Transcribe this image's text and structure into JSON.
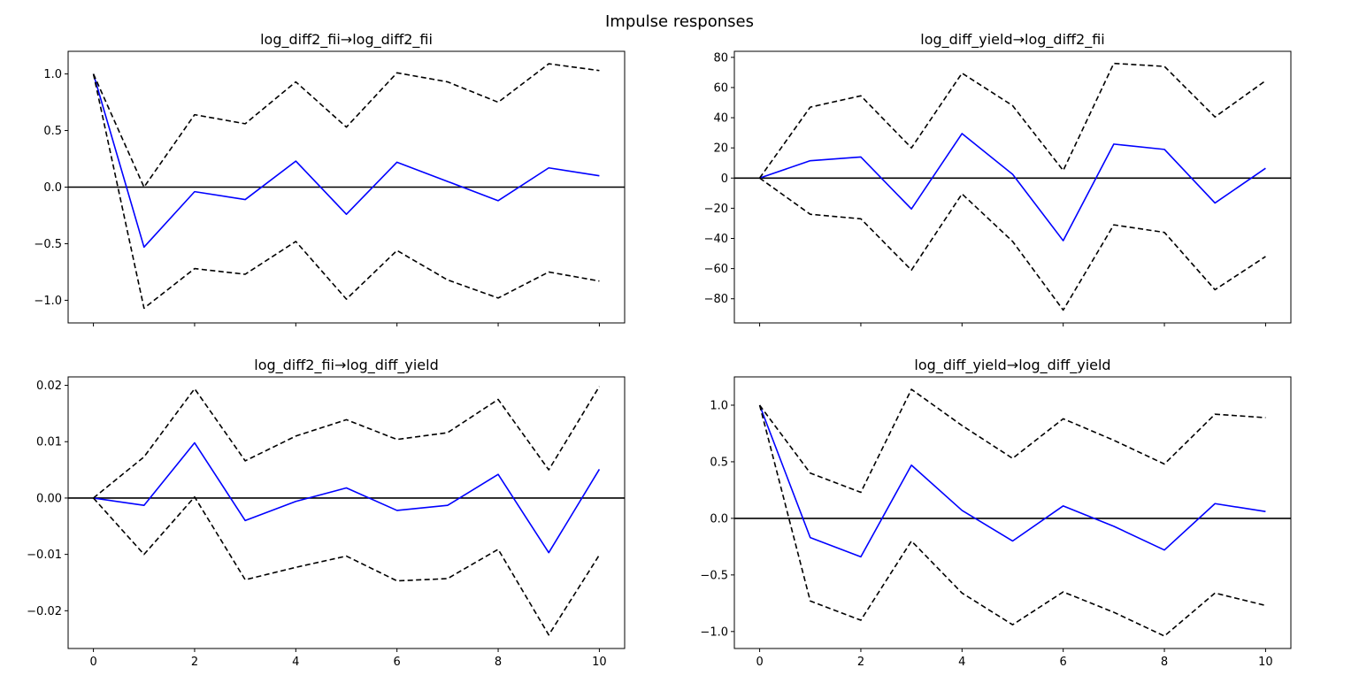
{
  "figure_title": "Impulse responses",
  "chart_data": [
    {
      "type": "line",
      "title": "log_diff2_fii→log_diff2_fii",
      "x": [
        0,
        1,
        2,
        3,
        4,
        5,
        6,
        7,
        8,
        9,
        10
      ],
      "ylim": [
        -1.2,
        1.2
      ],
      "yticks": [
        -1.0,
        -0.5,
        0.0,
        0.5,
        1.0
      ],
      "ytick_labels": [
        "−1.0",
        "−0.5",
        "0.0",
        "0.5",
        "1.0"
      ],
      "xticks": [
        0,
        2,
        4,
        6,
        8,
        10
      ],
      "xtick_labels": [],
      "series": [
        {
          "role": "response",
          "color": "#0000ff",
          "style": "solid",
          "values": [
            1.0,
            -0.53,
            -0.04,
            -0.11,
            0.23,
            -0.24,
            0.22,
            0.05,
            -0.12,
            0.17,
            0.1
          ]
        },
        {
          "role": "upper",
          "color": "#000000",
          "style": "dashed",
          "values": [
            1.0,
            0.0,
            0.64,
            0.56,
            0.93,
            0.53,
            1.01,
            0.93,
            0.75,
            1.09,
            1.03
          ]
        },
        {
          "role": "lower",
          "color": "#000000",
          "style": "dashed",
          "values": [
            1.0,
            -1.07,
            -0.72,
            -0.77,
            -0.48,
            -0.99,
            -0.56,
            -0.82,
            -0.98,
            -0.75,
            -0.83
          ]
        }
      ]
    },
    {
      "type": "line",
      "title": "log_diff_yield→log_diff2_fii",
      "x": [
        0,
        1,
        2,
        3,
        4,
        5,
        6,
        7,
        8,
        9,
        10
      ],
      "ylim": [
        -96,
        84
      ],
      "yticks": [
        -80,
        -60,
        -40,
        -20,
        0,
        20,
        40,
        60,
        80
      ],
      "ytick_labels": [
        "−80",
        "−60",
        "−40",
        "−20",
        "0",
        "20",
        "40",
        "60",
        "80"
      ],
      "xticks": [
        0,
        2,
        4,
        6,
        8,
        10
      ],
      "xtick_labels": [],
      "series": [
        {
          "role": "response",
          "color": "#0000ff",
          "style": "solid",
          "values": [
            0,
            11.5,
            14,
            -20.5,
            29.5,
            2.5,
            -41.5,
            22.5,
            19,
            -16.5,
            6.5
          ]
        },
        {
          "role": "upper",
          "color": "#000000",
          "style": "dashed",
          "values": [
            0,
            47,
            54.5,
            20,
            69.5,
            48,
            5,
            76,
            74,
            40.5,
            64.5
          ]
        },
        {
          "role": "lower",
          "color": "#000000",
          "style": "dashed",
          "values": [
            0,
            -24,
            -27,
            -61,
            -10.5,
            -42,
            -87.5,
            -31,
            -36,
            -74,
            -52
          ]
        }
      ]
    },
    {
      "type": "line",
      "title": "log_diff2_fii→log_diff_yield",
      "x": [
        0,
        1,
        2,
        3,
        4,
        5,
        6,
        7,
        8,
        9,
        10
      ],
      "ylim": [
        -0.0267,
        0.0215
      ],
      "yticks": [
        -0.02,
        -0.01,
        0.0,
        0.01,
        0.02
      ],
      "ytick_labels": [
        "−0.02",
        "−0.01",
        "0.00",
        "0.01",
        "0.02"
      ],
      "xticks": [
        0,
        2,
        4,
        6,
        8,
        10
      ],
      "xtick_labels": [
        "0",
        "2",
        "4",
        "6",
        "8",
        "10"
      ],
      "series": [
        {
          "role": "response",
          "color": "#0000ff",
          "style": "solid",
          "values": [
            0,
            -0.0013,
            0.0098,
            -0.004,
            -0.0006,
            0.0018,
            -0.0022,
            -0.0013,
            0.0042,
            -0.0097,
            0.0051
          ]
        },
        {
          "role": "upper",
          "color": "#000000",
          "style": "dashed",
          "values": [
            0,
            0.0073,
            0.0194,
            0.0066,
            0.011,
            0.0139,
            0.0104,
            0.0116,
            0.0175,
            0.005,
            0.0198
          ]
        },
        {
          "role": "lower",
          "color": "#000000",
          "style": "dashed",
          "values": [
            0,
            -0.01,
            0.0002,
            -0.0145,
            -0.0123,
            -0.0103,
            -0.0147,
            -0.0143,
            -0.0091,
            -0.0243,
            -0.0101
          ]
        }
      ]
    },
    {
      "type": "line",
      "title": "log_diff_yield→log_diff_yield",
      "x": [
        0,
        1,
        2,
        3,
        4,
        5,
        6,
        7,
        8,
        9,
        10
      ],
      "ylim": [
        -1.15,
        1.25
      ],
      "yticks": [
        -1.0,
        -0.5,
        0.0,
        0.5,
        1.0
      ],
      "ytick_labels": [
        "−1.0",
        "−0.5",
        "0.0",
        "0.5",
        "1.0"
      ],
      "xticks": [
        0,
        2,
        4,
        6,
        8,
        10
      ],
      "xtick_labels": [
        "0",
        "2",
        "4",
        "6",
        "8",
        "10"
      ],
      "series": [
        {
          "role": "response",
          "color": "#0000ff",
          "style": "solid",
          "values": [
            1.0,
            -0.17,
            -0.34,
            0.47,
            0.07,
            -0.2,
            0.11,
            -0.07,
            -0.28,
            0.13,
            0.06
          ]
        },
        {
          "role": "upper",
          "color": "#000000",
          "style": "dashed",
          "values": [
            1.0,
            0.4,
            0.23,
            1.14,
            0.82,
            0.53,
            0.88,
            0.69,
            0.48,
            0.92,
            0.89
          ]
        },
        {
          "role": "lower",
          "color": "#000000",
          "style": "dashed",
          "values": [
            1.0,
            -0.73,
            -0.9,
            -0.2,
            -0.66,
            -0.94,
            -0.65,
            -0.83,
            -1.04,
            -0.66,
            -0.77
          ]
        }
      ]
    }
  ]
}
